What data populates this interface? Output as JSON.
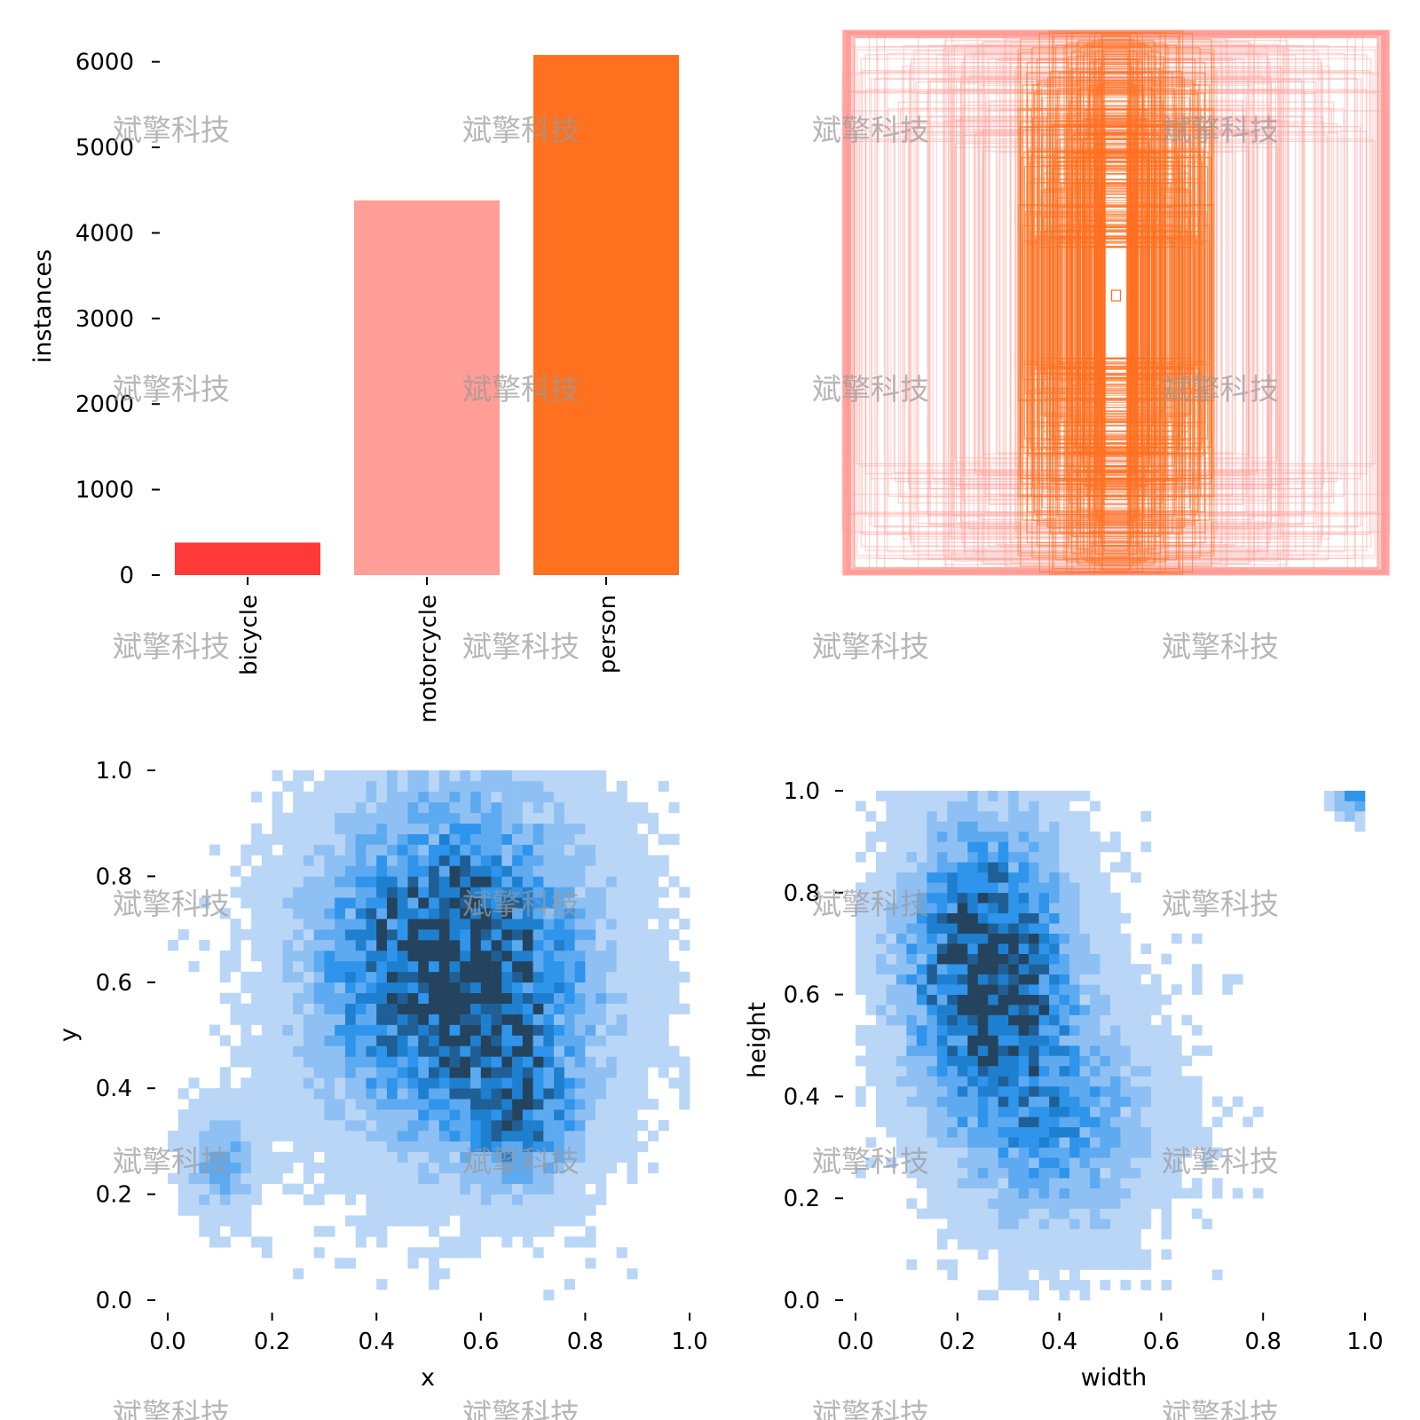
{
  "chart_data": [
    {
      "type": "bar",
      "title": "",
      "xlabel": "",
      "ylabel": "instances",
      "ylim": [
        0,
        6100
      ],
      "yticks": [
        0,
        1000,
        2000,
        3000,
        4000,
        5000,
        6000
      ],
      "categories": [
        "bicycle",
        "motorcycle",
        "person"
      ],
      "values": [
        380,
        4380,
        6080
      ],
      "colors": [
        "#ff3838",
        "#ff9d97",
        "#ff701f"
      ]
    },
    {
      "type": "box-overlay",
      "title": "",
      "description_values": {
        "box_count_estimate": 10840,
        "canvas_normalized_range": [
          0,
          1
        ]
      },
      "colors": [
        "#ff9d97",
        "#ff701f"
      ]
    },
    {
      "type": "heatmap",
      "title": "",
      "xlabel": "x",
      "ylabel": "y",
      "xlim": [
        0,
        1
      ],
      "ylim": [
        0,
        1
      ],
      "xticks": [
        "0.0",
        "0.2",
        "0.4",
        "0.6",
        "0.8",
        "1.0"
      ],
      "yticks": [
        "0.0",
        "0.2",
        "0.4",
        "0.6",
        "0.8",
        "1.0"
      ],
      "bins": 50,
      "density_centers": [
        {
          "x": 0.55,
          "y": 0.62,
          "sx": 0.16,
          "sy": 0.19,
          "weight": 1.0
        },
        {
          "x": 0.68,
          "y": 0.35,
          "sx": 0.07,
          "sy": 0.08,
          "weight": 0.45
        },
        {
          "x": 0.1,
          "y": 0.26,
          "sx": 0.04,
          "sy": 0.06,
          "weight": 0.35
        }
      ],
      "color": "#1f8ef1"
    },
    {
      "type": "heatmap",
      "title": "",
      "xlabel": "width",
      "ylabel": "height",
      "xlim": [
        0,
        1
      ],
      "ylim": [
        0,
        1
      ],
      "xticks": [
        "0.0",
        "0.2",
        "0.4",
        "0.6",
        "0.8",
        "1.0"
      ],
      "yticks": [
        "0.0",
        "0.2",
        "0.4",
        "0.6",
        "0.8",
        "1.0"
      ],
      "bins": 50,
      "density_centers": [
        {
          "x": 0.26,
          "y": 0.65,
          "sx": 0.1,
          "sy": 0.17,
          "weight": 1.0
        },
        {
          "x": 0.4,
          "y": 0.35,
          "sx": 0.12,
          "sy": 0.14,
          "weight": 0.4
        },
        {
          "x": 0.98,
          "y": 0.98,
          "sx": 0.02,
          "sy": 0.02,
          "weight": 0.5
        }
      ],
      "color": "#1f8ef1"
    }
  ],
  "watermark": {
    "text": "斌擎科技"
  }
}
